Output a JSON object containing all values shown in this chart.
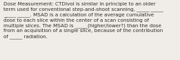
{
  "text": "Dose Measurement: CTDIvol is similar in principle to an older\nterm used for conventional step-and-shoot scanning, _____ _____\n_____ _____. MSAD is a calculation of the average cumulative\ndose to each slice within the center of a scan consisting of\nmultiple slices. The MSAD is _____(higher/lower?) than the dose\nfrom an acquisition of a single slice, because of the contribution\nof _____ radiation.",
  "font_size": 5.2,
  "font_color": "#2c2c2c",
  "background_color": "#f0ede8",
  "font_family": "DejaVu Sans",
  "linespacing": 1.3,
  "fig_width": 2.61,
  "fig_height": 0.88,
  "dpi": 100
}
